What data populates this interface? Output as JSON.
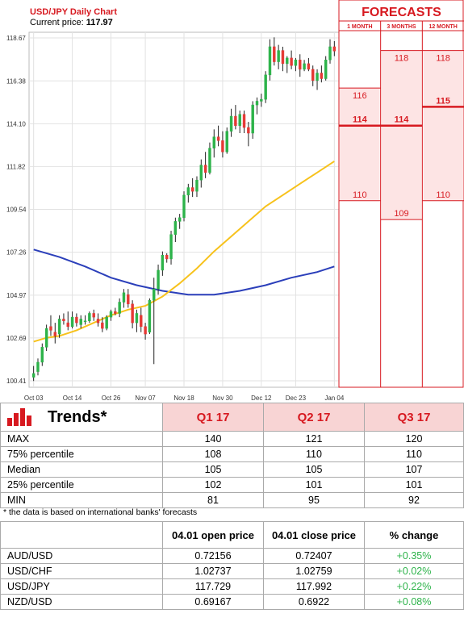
{
  "chart_data": {
    "type": "candlestick",
    "title": "USD/JPY Daily Chart",
    "current_price_label": "Current price:",
    "current_price": "117.97",
    "y_ticks": [
      "118.67",
      "116.38",
      "114.10",
      "111.82",
      "109.54",
      "107.26",
      "104.97",
      "102.69",
      "100.41"
    ],
    "x_ticks": [
      "Oct 03",
      "Oct 14",
      "Oct 26",
      "Nov 07",
      "Nov 18",
      "Nov 30",
      "Dec 12",
      "Dec 23",
      "Jan 04"
    ],
    "ylim": [
      100.41,
      118.67
    ],
    "candles": [
      [
        100.6,
        101.2,
        100.4,
        100.8
      ],
      [
        100.9,
        101.6,
        100.7,
        101.4
      ],
      [
        101.4,
        102.4,
        101.2,
        102.2
      ],
      [
        102.2,
        103.4,
        102.0,
        103.2
      ],
      [
        103.3,
        103.9,
        102.8,
        103.1
      ],
      [
        103.0,
        103.5,
        102.4,
        102.8
      ],
      [
        102.9,
        103.9,
        102.7,
        103.7
      ],
      [
        103.7,
        104.0,
        103.4,
        103.6
      ],
      [
        103.5,
        104.1,
        103.1,
        103.3
      ],
      [
        103.3,
        104.1,
        103.2,
        103.8
      ],
      [
        103.8,
        104.0,
        103.3,
        103.5
      ],
      [
        103.4,
        103.9,
        103.2,
        103.7
      ],
      [
        103.6,
        103.9,
        103.4,
        103.6
      ],
      [
        103.6,
        104.1,
        103.5,
        104.0
      ],
      [
        104.0,
        104.2,
        103.6,
        103.8
      ],
      [
        103.7,
        104.0,
        103.3,
        103.5
      ],
      [
        103.5,
        103.8,
        103.0,
        103.2
      ],
      [
        103.2,
        103.9,
        103.1,
        103.8
      ],
      [
        103.8,
        104.2,
        103.6,
        104.1
      ],
      [
        104.1,
        104.3,
        103.9,
        104.0
      ],
      [
        104.0,
        104.8,
        103.8,
        104.6
      ],
      [
        104.6,
        105.3,
        104.3,
        105.1
      ],
      [
        105.0,
        105.3,
        104.3,
        104.5
      ],
      [
        104.5,
        104.7,
        103.2,
        103.5
      ],
      [
        103.5,
        104.2,
        103.0,
        104.0
      ],
      [
        103.9,
        104.3,
        103.0,
        103.3
      ],
      [
        103.3,
        103.5,
        102.6,
        102.9
      ],
      [
        103.0,
        104.8,
        102.9,
        104.7
      ],
      [
        104.7,
        105.9,
        101.3,
        105.3
      ],
      [
        105.3,
        106.6,
        105.0,
        106.3
      ],
      [
        106.3,
        107.3,
        106.0,
        107.1
      ],
      [
        107.1,
        107.2,
        106.7,
        106.9
      ],
      [
        106.9,
        108.4,
        106.6,
        108.2
      ],
      [
        108.2,
        109.1,
        107.8,
        108.9
      ],
      [
        108.9,
        109.3,
        108.5,
        109.1
      ],
      [
        109.1,
        110.5,
        108.9,
        110.3
      ],
      [
        110.3,
        110.9,
        109.9,
        110.7
      ],
      [
        110.7,
        111.2,
        110.2,
        110.5
      ],
      [
        110.5,
        111.3,
        110.2,
        111.1
      ],
      [
        111.1,
        112.2,
        110.7,
        111.9
      ],
      [
        111.9,
        112.6,
        111.2,
        111.5
      ],
      [
        111.5,
        113.1,
        111.4,
        112.8
      ],
      [
        112.8,
        113.8,
        112.3,
        113.4
      ],
      [
        113.4,
        114.0,
        112.9,
        113.2
      ],
      [
        113.2,
        113.7,
        112.3,
        112.6
      ],
      [
        112.6,
        113.9,
        112.5,
        113.7
      ],
      [
        113.7,
        114.9,
        113.4,
        114.5
      ],
      [
        114.5,
        115.1,
        113.8,
        114.0
      ],
      [
        114.0,
        114.8,
        113.6,
        114.6
      ],
      [
        114.6,
        114.8,
        113.6,
        113.9
      ],
      [
        113.9,
        114.2,
        112.9,
        113.6
      ],
      [
        113.6,
        115.3,
        113.3,
        115.1
      ],
      [
        115.1,
        115.5,
        114.6,
        115.3
      ],
      [
        115.3,
        115.7,
        115.0,
        115.4
      ],
      [
        115.4,
        116.9,
        115.2,
        116.7
      ],
      [
        116.7,
        118.6,
        116.4,
        118.2
      ],
      [
        118.2,
        118.7,
        117.2,
        117.4
      ],
      [
        117.4,
        118.3,
        117.0,
        118.0
      ],
      [
        118.0,
        118.2,
        116.9,
        117.3
      ],
      [
        117.3,
        117.7,
        116.8,
        117.6
      ],
      [
        117.6,
        118.0,
        117.0,
        117.2
      ],
      [
        117.2,
        117.6,
        116.9,
        117.5
      ],
      [
        117.5,
        117.8,
        116.6,
        117.0
      ],
      [
        117.0,
        117.5,
        116.9,
        117.3
      ],
      [
        117.3,
        117.6,
        116.9,
        117.0
      ],
      [
        117.0,
        117.2,
        116.1,
        116.4
      ],
      [
        116.4,
        117.0,
        115.9,
        116.8
      ],
      [
        116.8,
        117.2,
        116.3,
        116.5
      ],
      [
        116.5,
        117.7,
        116.4,
        117.5
      ],
      [
        117.5,
        118.6,
        117.3,
        118.2
      ],
      [
        118.2,
        118.5,
        117.7,
        117.97
      ]
    ],
    "ma_fast": [
      [
        0,
        102.5
      ],
      [
        3,
        102.7
      ],
      [
        6,
        102.8
      ],
      [
        10,
        103.1
      ],
      [
        14,
        103.5
      ],
      [
        18,
        103.9
      ],
      [
        22,
        104.2
      ],
      [
        26,
        104.4
      ],
      [
        30,
        104.9
      ],
      [
        34,
        105.6
      ],
      [
        38,
        106.4
      ],
      [
        42,
        107.3
      ],
      [
        46,
        108.1
      ],
      [
        50,
        108.9
      ],
      [
        54,
        109.7
      ],
      [
        58,
        110.3
      ],
      [
        62,
        110.9
      ],
      [
        66,
        111.5
      ],
      [
        70,
        112.1
      ]
    ],
    "ma_slow": [
      [
        0,
        107.4
      ],
      [
        6,
        107.0
      ],
      [
        12,
        106.5
      ],
      [
        18,
        105.9
      ],
      [
        24,
        105.5
      ],
      [
        30,
        105.2
      ],
      [
        36,
        105.0
      ],
      [
        42,
        105.0
      ],
      [
        48,
        105.2
      ],
      [
        54,
        105.5
      ],
      [
        60,
        105.9
      ],
      [
        66,
        106.2
      ],
      [
        70,
        106.5
      ]
    ],
    "forecasts": {
      "title": "FORECASTS",
      "columns": [
        {
          "label": "1 MONTH",
          "high": "116",
          "mid": "114",
          "low": "110",
          "high_v": 116,
          "mid_v": 114,
          "low_v": 110
        },
        {
          "label": "3 MONTHS",
          "high": "118",
          "mid": "114",
          "low": "109",
          "high_v": 118,
          "mid_v": 114,
          "low_v": 109
        },
        {
          "label": "12 MONTH",
          "high": "118",
          "mid": "115",
          "low": "110",
          "high_v": 118,
          "mid_v": 115,
          "low_v": 110
        }
      ]
    },
    "colors": {
      "up": "#2db34a",
      "down": "#e53935",
      "ma_fast": "#f7c21c",
      "ma_slow": "#2b3fba",
      "accent": "#d71920",
      "forecast_fill": "#fde4e4"
    }
  },
  "trends": {
    "title": "Trends*",
    "columns": [
      "Q1 17",
      "Q2 17",
      "Q3 17"
    ],
    "rows": [
      {
        "label": "MAX",
        "values": [
          "140",
          "121",
          "120"
        ]
      },
      {
        "label": "75% percentile",
        "values": [
          "108",
          "110",
          "110"
        ]
      },
      {
        "label": "Median",
        "values": [
          "105",
          "105",
          "107"
        ]
      },
      {
        "label": "25% percentile",
        "values": [
          "102",
          "101",
          "101"
        ]
      },
      {
        "label": "MIN",
        "values": [
          "81",
          "95",
          "92"
        ]
      }
    ],
    "footnote": "* the data is based on international banks' forecasts"
  },
  "prices": {
    "columns": [
      "",
      "04.01 open price",
      "04.01 close price",
      "% change"
    ],
    "rows": [
      {
        "pair": "AUD/USD",
        "open": "0.72156",
        "close": "0.72407",
        "change": "+0.35%"
      },
      {
        "pair": "USD/CHF",
        "open": "1.02737",
        "close": "1.02759",
        "change": "+0.02%"
      },
      {
        "pair": "USD/JPY",
        "open": "117.729",
        "close": "117.992",
        "change": "+0.22%"
      },
      {
        "pair": "NZD/USD",
        "open": "0.69167",
        "close": "0.6922",
        "change": "+0.08%"
      }
    ]
  }
}
